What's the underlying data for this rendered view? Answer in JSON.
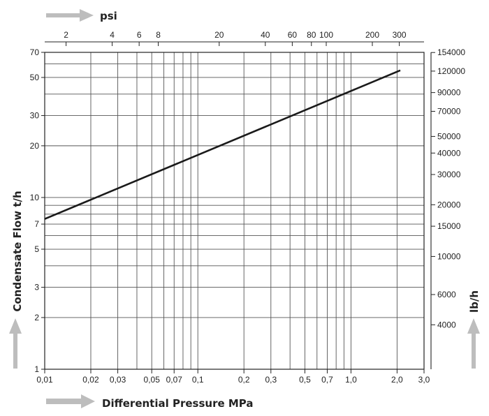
{
  "chart_data": {
    "type": "line",
    "title": "",
    "xlabel": "Differential Pressure MPa",
    "ylabel": "Condensate Flow t/h",
    "x2label": "psi",
    "y2label": "lb/h",
    "xscale": "log",
    "yscale": "log",
    "xlim": [
      0.01,
      3.0
    ],
    "ylim": [
      1,
      70
    ],
    "grid": true,
    "x_ticks": [
      0.01,
      0.02,
      0.03,
      0.05,
      0.07,
      0.1,
      0.2,
      0.3,
      0.5,
      0.7,
      1.0,
      2.0,
      3.0
    ],
    "x_tick_labels": [
      "0,01",
      "0,02",
      "0,03",
      "0,05",
      "0,07",
      "0,1",
      "0,2",
      "0,3",
      "0,5",
      "0,7",
      "1,0",
      "2,0",
      "3,0"
    ],
    "x_minor_ticks": [
      0.04,
      0.06,
      0.08,
      0.09,
      0.4,
      0.6,
      0.8,
      0.9
    ],
    "y_ticks": [
      1,
      2,
      3,
      5,
      7,
      10,
      20,
      30,
      50,
      70
    ],
    "y_tick_labels": [
      "1",
      "2",
      "3",
      "5",
      "7",
      "10",
      "20",
      "30",
      "50",
      "70"
    ],
    "y_minor_ticks": [
      4,
      6,
      8,
      9,
      40,
      60
    ],
    "x2_ticks": [
      2,
      4,
      6,
      8,
      20,
      40,
      60,
      80,
      100,
      200,
      300
    ],
    "x2_tick_labels": [
      "2",
      "4",
      "6",
      "8",
      "20",
      "40",
      "60",
      "80",
      "100",
      "200",
      "300"
    ],
    "y2_ticks": [
      154000,
      120000,
      90000,
      70000,
      50000,
      40000,
      30000,
      20000,
      15000,
      10000,
      6000,
      4000
    ],
    "y2_tick_labels": [
      "154000",
      "120000",
      "90000",
      "70000",
      "50000",
      "40000",
      "30000",
      "20000",
      "15000",
      "10000",
      "6000",
      "4000"
    ],
    "series": [
      {
        "x": [
          0.01,
          2.1
        ],
        "y": [
          7.5,
          55
        ]
      }
    ]
  }
}
